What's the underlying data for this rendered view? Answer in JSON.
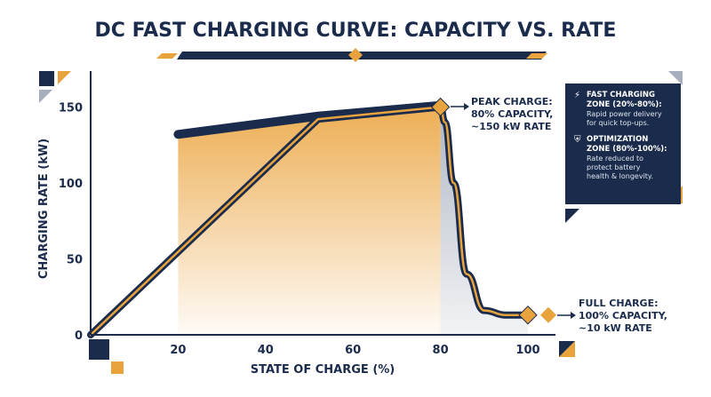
{
  "chart_data": {
    "type": "line",
    "title": "DC FAST CHARGING CURVE: CAPACITY VS. RATE",
    "xlabel": "STATE OF CHARGE (%)",
    "ylabel": "CHARGING RATE (kW)",
    "xlim": [
      0,
      105
    ],
    "ylim": [
      0,
      175
    ],
    "x_ticks": [
      "20",
      "40",
      "60",
      "80",
      "100"
    ],
    "y_ticks": [
      "0",
      "50",
      "100",
      "150"
    ],
    "grid": false,
    "series": [
      {
        "points": [
          [
            0,
            0
          ],
          [
            52,
            142
          ],
          [
            80,
            150
          ],
          [
            81,
            140
          ],
          [
            83,
            100
          ],
          [
            86,
            40
          ],
          [
            90,
            16
          ],
          [
            95,
            13
          ],
          [
            100,
            13
          ]
        ]
      },
      {
        "points": [
          [
            20,
            132
          ],
          [
            52,
            144
          ],
          [
            80,
            151
          ]
        ]
      }
    ],
    "annotations": [
      {
        "x": 80,
        "y": 150,
        "lines": [
          "PEAK CHARGE:",
          "80% CAPACITY,",
          "~150 kW RATE"
        ]
      },
      {
        "x": 100,
        "y": 13,
        "lines": [
          "FULL CHARGE:",
          "100% CAPACITY,",
          "~10 kW RATE"
        ]
      }
    ],
    "legend": {
      "placement": "right",
      "items": [
        {
          "icon": "lightning-icon",
          "title_lines": [
            "FAST CHARGING",
            "ZONE (20%-80%):"
          ],
          "desc_lines": [
            "Rapid power delivery",
            "for quick top-ups."
          ]
        },
        {
          "icon": "shield-icon",
          "title_lines": [
            "OPTIMIZATION",
            "ZONE (80%-100%):"
          ],
          "desc_lines": [
            "Rate reduced to",
            "protect battery",
            "health & longevity."
          ]
        }
      ]
    },
    "colors": {
      "navy": "#1a2b4c",
      "orange": "#e8a33d",
      "fill_orange": "#eca94a",
      "fill_gray": "#a7afbd"
    }
  }
}
